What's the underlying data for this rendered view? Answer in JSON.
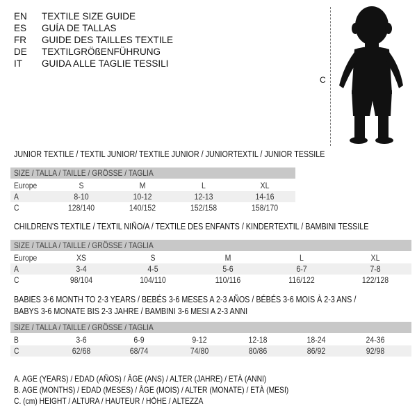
{
  "header": {
    "languages": [
      {
        "code": "EN",
        "title": "TEXTILE SIZE GUIDE"
      },
      {
        "code": "ES",
        "title": "GUÍA DE TALLAS"
      },
      {
        "code": "FR",
        "title": "GUIDE DES TAILLES TEXTILE"
      },
      {
        "code": "DE",
        "title": "TEXTILGRÖßENFÜHRUNG"
      },
      {
        "code": "IT",
        "title": "GUIDA ALLE TAGLIE TESSILI"
      }
    ],
    "figure_label": "C"
  },
  "sections": [
    {
      "title_lines": [
        "JUNIOR TEXTILE / TEXTIL JUNIOR/ TEXTILE JUNIOR / JUNIORTEXTIL / JUNIOR TESSILE"
      ],
      "header": "SIZE / TALLA / TAILLE / GRÖSSE / TAGLIA",
      "rows": [
        {
          "label": "Europe",
          "values": [
            "S",
            "M",
            "L",
            "XL"
          ]
        },
        {
          "label": "A",
          "values": [
            "8-10",
            "10-12",
            "12-13",
            "14-16"
          ]
        },
        {
          "label": "C",
          "values": [
            "128/140",
            "140/152",
            "152/158",
            "158/170"
          ]
        }
      ]
    },
    {
      "title_lines": [
        "CHILDREN'S TEXTILE / TEXTIL NIÑO/A / TEXTILE DES ENFANTS / KINDERTEXTIL / BAMBINI TESSILE"
      ],
      "header": "SIZE / TALLA / TAILLE / GRÖSSE / TAGLIA",
      "rows": [
        {
          "label": "Europe",
          "values": [
            "XS",
            "S",
            "M",
            "L",
            "XL"
          ]
        },
        {
          "label": "A",
          "values": [
            "3-4",
            "4-5",
            "5-6",
            "6-7",
            "7-8"
          ]
        },
        {
          "label": "C",
          "values": [
            "98/104",
            "104/110",
            "110/116",
            "116/122",
            "122/128"
          ]
        }
      ]
    },
    {
      "title_lines": [
        "BABIES 3-6 MONTH TO 2-3 YEARS / BEBÉS 3-6 MESES A 2-3 AÑOS / BÉBÉS 3-6 MOIS À 2-3 ANS /",
        "BABYS 3-6 MONATE BIS 2-3 JAHRE / BAMBINI 3-6 MESI A 2-3 ANNI"
      ],
      "header": "SIZE / TALLA / TAILLE / GRÖSSE / TAGLIA",
      "rows": [
        {
          "label": "B",
          "values": [
            "3-6",
            "6-9",
            "9-12",
            "12-18",
            "18-24",
            "24-36"
          ]
        },
        {
          "label": "C",
          "values": [
            "62/68",
            "68/74",
            "74/80",
            "80/86",
            "86/92",
            "92/98"
          ]
        }
      ]
    }
  ],
  "legend": [
    "A. AGE (YEARS) / EDAD (AÑOS) / ÂGE (ANS) / ALTER (JAHRE) / ETÀ (ANNI)",
    "B. AGE (MONTHS) / EDAD (MESES) / ÂGE (MOIS) / ALTER (MONATE) / ETÀ (MESI)",
    "C. (cm) HEIGHT / ALTURA / HAUTEUR / HÖHE / ALTEZZA"
  ]
}
